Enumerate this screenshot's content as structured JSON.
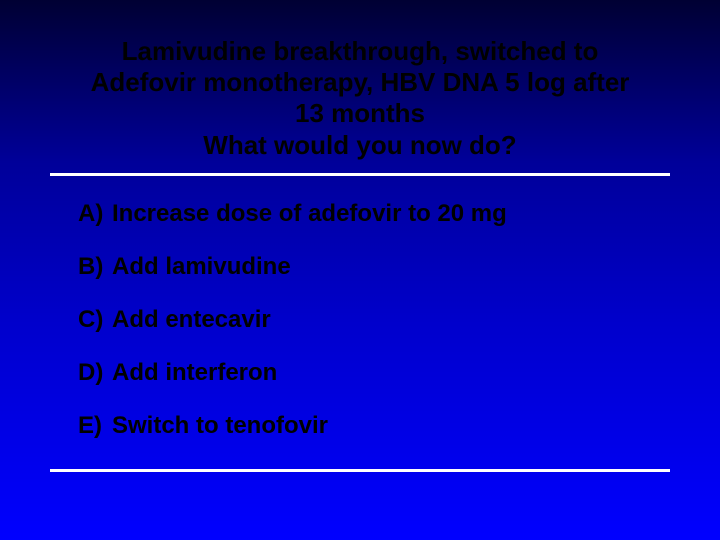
{
  "slide": {
    "title_line1": "Lamivudine breakthrough, switched to",
    "title_line2": "Adefovir monotherapy, HBV DNA 5 log after",
    "title_line3": "13 months",
    "title_line4": "What would you now do?",
    "title_fontsize": 26,
    "title_color": "#000000",
    "options": [
      {
        "letter": "A)",
        "text": "Increase dose of adefovir to 20 mg"
      },
      {
        "letter": "B)",
        "text": "Add lamivudine"
      },
      {
        "letter": "C)",
        "text": "Add entecavir"
      },
      {
        "letter": "D)",
        "text": "Add interferon"
      },
      {
        "letter": "E)",
        "text": "Switch to tenofovir"
      }
    ],
    "option_fontsize": 24,
    "option_color": "#000000",
    "background_gradient": [
      "#000033",
      "#000099",
      "#0000cc",
      "#0000ff"
    ],
    "hr_color": "#ffffff",
    "hr_thickness": 3
  }
}
